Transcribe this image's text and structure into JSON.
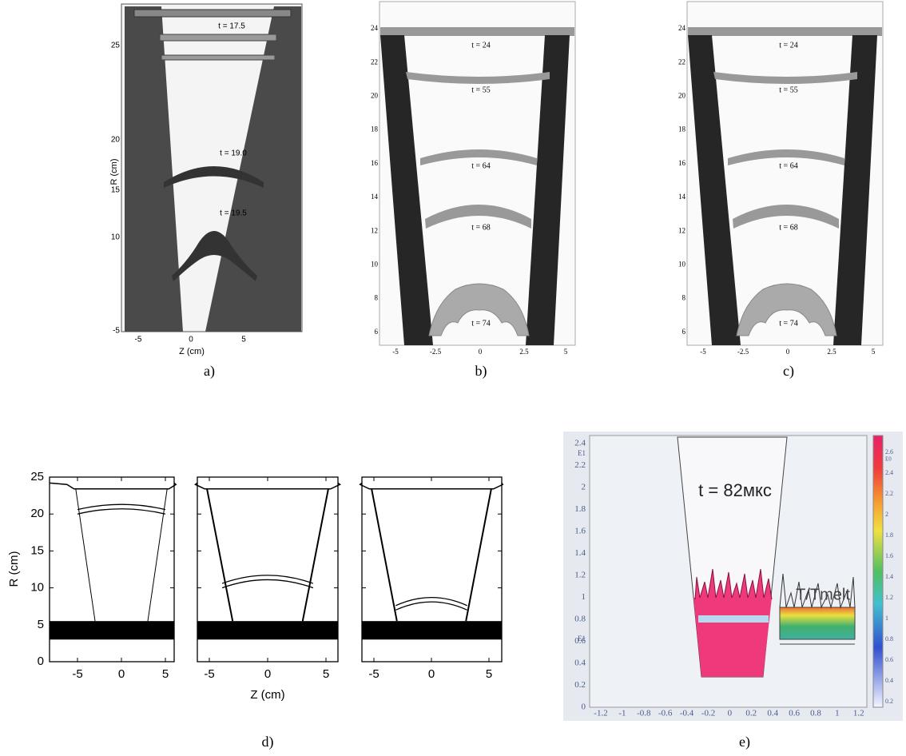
{
  "panels": [
    {
      "label": "a)",
      "y_label": "R (cm)",
      "x_label": "Z (cm)",
      "yticks": [
        "25",
        "20",
        "15",
        "10",
        "-5"
      ],
      "xticks": [
        "-5",
        "0",
        "5"
      ],
      "annotations": [
        "t = 17.5",
        "t = 19.0",
        "t = 19.5"
      ]
    },
    {
      "label": "b)",
      "yticks": [
        "24",
        "22",
        "20",
        "18",
        "16",
        "14",
        "12",
        "10",
        "8",
        "6"
      ],
      "xticks": [
        "-5",
        "-2.5",
        "0",
        "2.5",
        "5"
      ],
      "annotations": [
        "t = 24",
        "t = 55",
        "t = 64",
        "t = 68",
        "t = 74"
      ]
    },
    {
      "label": "c)",
      "yticks": [
        "24",
        "22",
        "20",
        "18",
        "16",
        "14",
        "12",
        "10",
        "8",
        "6"
      ],
      "xticks": [
        "-5",
        "-2.5",
        "0",
        "2.5",
        "5"
      ],
      "annotations": [
        "t = 24",
        "t = 55",
        "t = 64",
        "t = 68",
        "t = 74"
      ]
    },
    {
      "label": "d)",
      "y_label": "R (cm)",
      "x_label": "Z (cm)",
      "yticks": [
        "25",
        "20",
        "15",
        "10",
        "5",
        "0"
      ],
      "xticks": [
        "-5",
        "0",
        "5"
      ]
    },
    {
      "label": "e)",
      "yticks": [
        "2.4",
        "2.2",
        "2",
        "1.8",
        "1.6",
        "1.4",
        "1.2",
        "1",
        "0.8",
        "0.6",
        "0.4",
        "0.2",
        "0"
      ],
      "exponents": [
        "E1",
        "E1"
      ],
      "xticks": [
        "-1.2",
        "-1",
        "-0.8",
        "-0.6",
        "-0.4",
        "-0.2",
        "0",
        "0.2",
        "0.4",
        "0.6",
        "0.8",
        "1",
        "1.2"
      ],
      "colorbar_ticks": [
        "2.6",
        "2.4",
        "2.2",
        "2",
        "1.8",
        "1.6",
        "1.4",
        "1.2",
        "1",
        "0.8",
        "0.6",
        "0.4",
        "0.2"
      ],
      "colorbar_exponent": "E0",
      "annotations": [
        "t = 82мкс",
        "T/Tmelt"
      ]
    }
  ]
}
